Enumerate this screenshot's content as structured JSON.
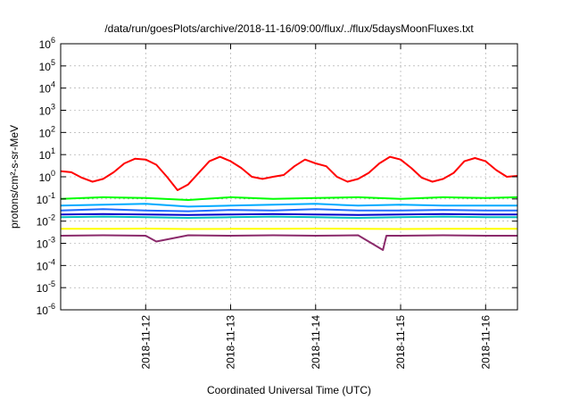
{
  "chart_data": {
    "type": "line",
    "title": "/data/run/goesPlots/archive/2018-11-16/09:00/flux/../flux/5daysMoonFluxes.txt",
    "xlabel": "Coordinated Universal Time (UTC)",
    "ylabel": "protons/cm²-s-sr-MeV",
    "yscale": "log",
    "ylim": [
      "1e-6",
      "1e6"
    ],
    "y_ticks": [
      {
        "value": "1e-6",
        "base": "10",
        "exp": "-6"
      },
      {
        "value": "1e-5",
        "base": "10",
        "exp": "-5"
      },
      {
        "value": "1e-4",
        "base": "10",
        "exp": "-4"
      },
      {
        "value": "1e-3",
        "base": "10",
        "exp": "-3"
      },
      {
        "value": "1e-2",
        "base": "10",
        "exp": "-2"
      },
      {
        "value": "1e-1",
        "base": "10",
        "exp": "-1"
      },
      {
        "value": "1e0",
        "base": "10",
        "exp": "0"
      },
      {
        "value": "1e1",
        "base": "10",
        "exp": "1"
      },
      {
        "value": "1e2",
        "base": "10",
        "exp": "2"
      },
      {
        "value": "1e3",
        "base": "10",
        "exp": "3"
      },
      {
        "value": "1e4",
        "base": "10",
        "exp": "4"
      },
      {
        "value": "1e5",
        "base": "10",
        "exp": "5"
      },
      {
        "value": "1e6",
        "base": "10",
        "exp": "6"
      }
    ],
    "xlim": [
      "2018-11-11 00:00",
      "2018-11-16 09:00"
    ],
    "x_ticks": [
      "2018-11-12",
      "2018-11-13",
      "2018-11-14",
      "2018-11-15",
      "2018-11-16"
    ],
    "grid": true,
    "series": [
      {
        "color": "#ff0000",
        "x": [
          "2018-11-11 00:00",
          "2018-11-11 03:00",
          "2018-11-11 06:00",
          "2018-11-11 09:00",
          "2018-11-11 12:00",
          "2018-11-11 15:00",
          "2018-11-11 18:00",
          "2018-11-11 21:00",
          "2018-11-12 00:00",
          "2018-11-12 03:00",
          "2018-11-12 06:00",
          "2018-11-12 09:00",
          "2018-11-12 12:00",
          "2018-11-12 15:00",
          "2018-11-12 18:00",
          "2018-11-12 21:00",
          "2018-11-13 00:00",
          "2018-11-13 03:00",
          "2018-11-13 06:00",
          "2018-11-13 09:00",
          "2018-11-13 12:00",
          "2018-11-13 15:00",
          "2018-11-13 18:00",
          "2018-11-13 21:00",
          "2018-11-14 00:00",
          "2018-11-14 03:00",
          "2018-11-14 06:00",
          "2018-11-14 09:00",
          "2018-11-14 12:00",
          "2018-11-14 15:00",
          "2018-11-14 18:00",
          "2018-11-14 21:00",
          "2018-11-15 00:00",
          "2018-11-15 03:00",
          "2018-11-15 06:00",
          "2018-11-15 09:00",
          "2018-11-15 12:00",
          "2018-11-15 15:00",
          "2018-11-15 18:00",
          "2018-11-15 21:00",
          "2018-11-16 00:00",
          "2018-11-16 03:00",
          "2018-11-16 06:00",
          "2018-11-16 09:00"
        ],
        "y": [
          1.8,
          1.6,
          0.9,
          0.6,
          0.8,
          1.6,
          4,
          6.5,
          6,
          3.5,
          1,
          0.25,
          0.45,
          1.5,
          5,
          8,
          5,
          2.5,
          1,
          0.8,
          1,
          1.2,
          3,
          6,
          4,
          3,
          1,
          0.6,
          0.8,
          1.5,
          4,
          8,
          6,
          2.5,
          0.9,
          0.6,
          0.8,
          1.5,
          5,
          7,
          5,
          2,
          1,
          1.1
        ]
      },
      {
        "color": "#00ff00",
        "x": [
          "2018-11-11 00:00",
          "2018-11-11 12:00",
          "2018-11-12 00:00",
          "2018-11-12 12:00",
          "2018-11-13 00:00",
          "2018-11-13 12:00",
          "2018-11-14 00:00",
          "2018-11-14 12:00",
          "2018-11-15 00:00",
          "2018-11-15 12:00",
          "2018-11-16 00:00",
          "2018-11-16 09:00"
        ],
        "y": [
          0.1,
          0.12,
          0.11,
          0.09,
          0.12,
          0.1,
          0.11,
          0.12,
          0.1,
          0.12,
          0.11,
          0.12
        ]
      },
      {
        "color": "#00aaff",
        "x": [
          "2018-11-11 00:00",
          "2018-11-11 12:00",
          "2018-11-12 00:00",
          "2018-11-12 12:00",
          "2018-11-13 00:00",
          "2018-11-13 12:00",
          "2018-11-14 00:00",
          "2018-11-14 12:00",
          "2018-11-15 00:00",
          "2018-11-15 12:00",
          "2018-11-16 00:00",
          "2018-11-16 09:00"
        ],
        "y": [
          0.05,
          0.055,
          0.06,
          0.045,
          0.05,
          0.055,
          0.06,
          0.05,
          0.055,
          0.05,
          0.05,
          0.05
        ]
      },
      {
        "color": "#1f6bff",
        "x": [
          "2018-11-11 00:00",
          "2018-11-11 12:00",
          "2018-11-12 00:00",
          "2018-11-12 12:00",
          "2018-11-13 00:00",
          "2018-11-13 12:00",
          "2018-11-14 00:00",
          "2018-11-14 12:00",
          "2018-11-15 00:00",
          "2018-11-15 12:00",
          "2018-11-16 00:00",
          "2018-11-16 09:00"
        ],
        "y": [
          0.03,
          0.035,
          0.03,
          0.028,
          0.032,
          0.03,
          0.035,
          0.03,
          0.03,
          0.032,
          0.03,
          0.03
        ]
      },
      {
        "color": "#00c0c0",
        "x": [
          "2018-11-11 00:00",
          "2018-11-11 12:00",
          "2018-11-12 00:00",
          "2018-11-12 12:00",
          "2018-11-13 00:00",
          "2018-11-13 12:00",
          "2018-11-14 00:00",
          "2018-11-14 12:00",
          "2018-11-15 00:00",
          "2018-11-15 12:00",
          "2018-11-16 00:00",
          "2018-11-16 09:00"
        ],
        "y": [
          0.015,
          0.016,
          0.015,
          0.014,
          0.015,
          0.016,
          0.015,
          0.014,
          0.015,
          0.016,
          0.015,
          0.015
        ]
      },
      {
        "color": "#0000cc",
        "x": [
          "2018-11-11 00:00",
          "2018-11-11 12:00",
          "2018-11-12 00:00",
          "2018-11-12 12:00",
          "2018-11-13 00:00",
          "2018-11-13 12:00",
          "2018-11-14 00:00",
          "2018-11-14 12:00",
          "2018-11-15 00:00",
          "2018-11-15 12:00",
          "2018-11-16 00:00",
          "2018-11-16 09:00"
        ],
        "y": [
          0.02,
          0.021,
          0.02,
          0.019,
          0.02,
          0.021,
          0.02,
          0.019,
          0.02,
          0.021,
          0.02,
          0.02
        ]
      },
      {
        "color": "#ffff00",
        "x": [
          "2018-11-11 00:00",
          "2018-11-11 12:00",
          "2018-11-12 00:00",
          "2018-11-12 12:00",
          "2018-11-13 00:00",
          "2018-11-13 12:00",
          "2018-11-14 00:00",
          "2018-11-14 12:00",
          "2018-11-15 00:00",
          "2018-11-15 12:00",
          "2018-11-16 00:00",
          "2018-11-16 09:00"
        ],
        "y": [
          0.0045,
          0.0045,
          0.0046,
          0.0044,
          0.0045,
          0.0045,
          0.0046,
          0.0045,
          0.0044,
          0.0045,
          0.0045,
          0.0045
        ]
      },
      {
        "color": "#8b2a6b",
        "x": [
          "2018-11-11 00:00",
          "2018-11-11 12:00",
          "2018-11-12 00:00",
          "2018-11-12 03:00",
          "2018-11-12 12:00",
          "2018-11-13 00:00",
          "2018-11-13 12:00",
          "2018-11-14 00:00",
          "2018-11-14 12:00",
          "2018-11-14 19:00",
          "2018-11-14 20:00",
          "2018-11-15 00:00",
          "2018-11-15 12:00",
          "2018-11-16 00:00",
          "2018-11-16 09:00"
        ],
        "y": [
          0.0022,
          0.0023,
          0.0022,
          0.0012,
          0.0023,
          0.0022,
          0.0023,
          0.0022,
          0.0023,
          0.0005,
          0.0022,
          0.0022,
          0.0023,
          0.0022,
          0.0022
        ]
      }
    ]
  }
}
